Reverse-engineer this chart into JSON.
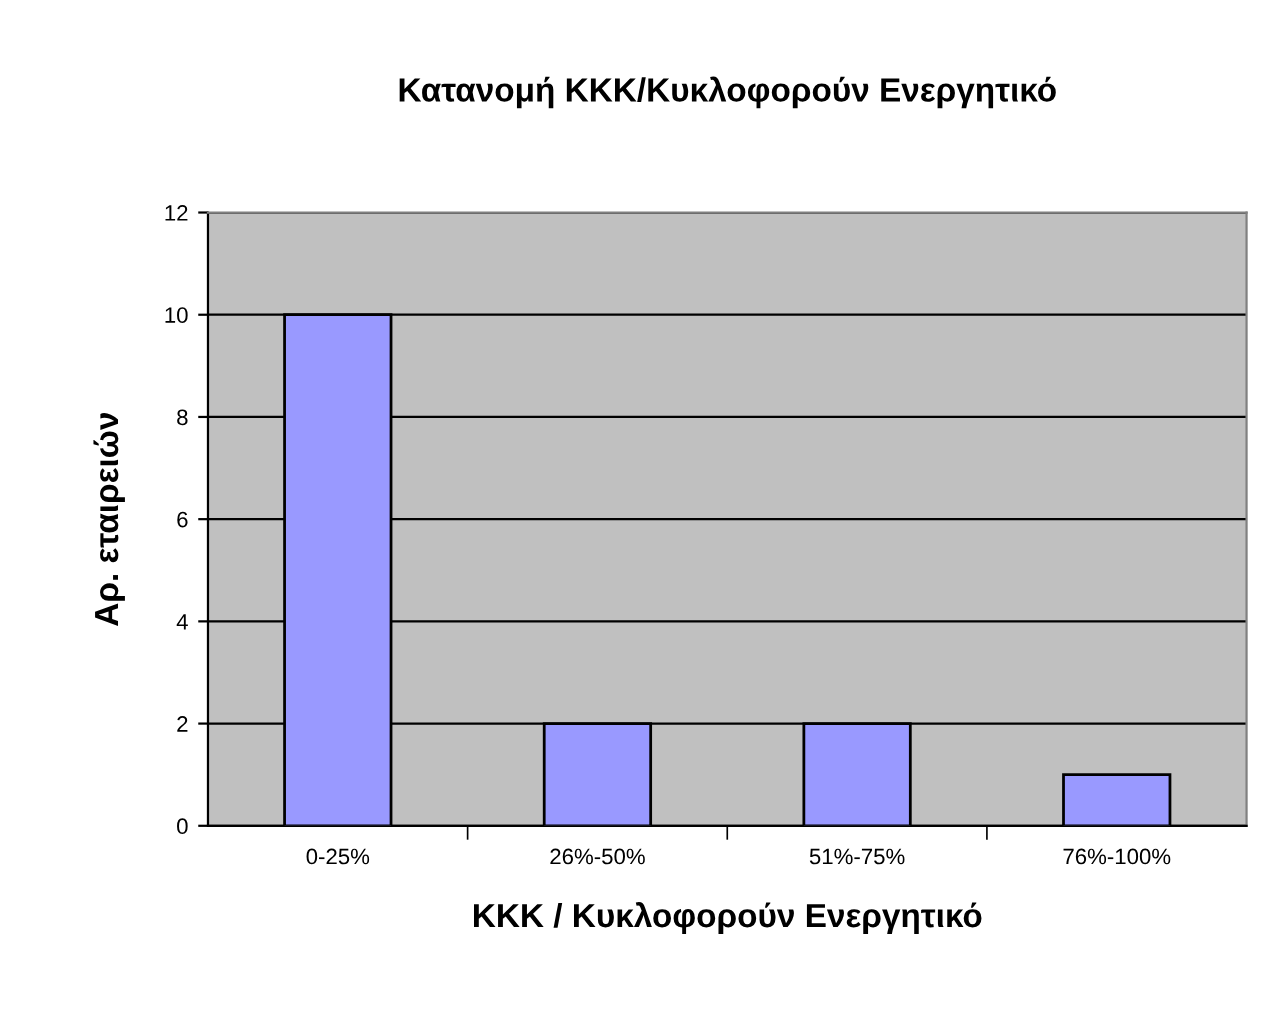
{
  "chart_data": {
    "type": "bar",
    "title": "Κατανομή ΚΚΚ/Κυκλοφορούν Ενεργητικό",
    "xlabel": "ΚΚΚ / Κυκλοφορούν Ενεργητικό",
    "ylabel": "Αρ. εταιρειών",
    "categories": [
      "0-25%",
      "26%-50%",
      "51%-75%",
      "76%-100%"
    ],
    "values": [
      10,
      2,
      2,
      1
    ],
    "color": "#9999ff",
    "ylim": [
      0,
      12
    ],
    "yticks": [
      0,
      2,
      4,
      6,
      8,
      10,
      12
    ],
    "grid": "y",
    "legend": false
  }
}
